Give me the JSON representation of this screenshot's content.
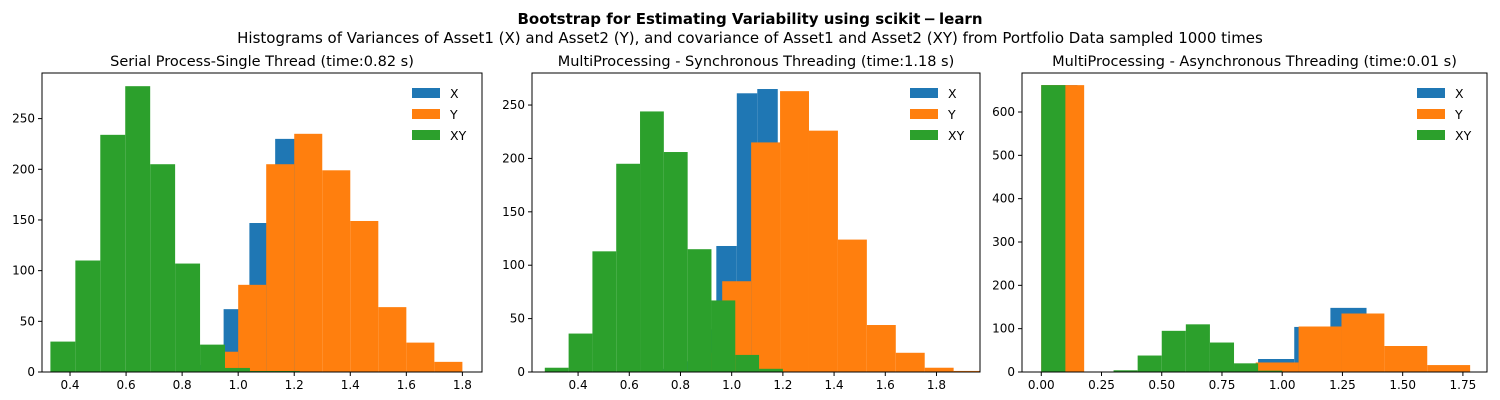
{
  "figure": {
    "title": "Bootstrap for Estimating Variability using scikit − learn",
    "subtitle": "Histograms of Variances of Asset1 (X) and Asset2 (Y), and covariance of Asset1 and Asset2 (XY) from Portfolio Data sampled 1000 times"
  },
  "colors": {
    "X": "#1f77b4",
    "Y": "#ff7f0e",
    "XY": "#2ca02c"
  },
  "chart_data": [
    {
      "type": "bar",
      "title": "Serial Process-Single Thread (time:0.82 s)",
      "xlim": [
        0.3,
        1.87
      ],
      "ylim": [
        0,
        295
      ],
      "xticks": [
        0.4,
        0.6,
        0.8,
        1.0,
        1.2,
        1.4,
        1.6,
        1.8
      ],
      "xtick_labels": [
        "0.4",
        "0.6",
        "0.8",
        "1.0",
        "1.2",
        "1.4",
        "1.6",
        "1.8"
      ],
      "yticks": [
        0,
        50,
        100,
        150,
        200,
        250
      ],
      "ytick_labels": [
        "0",
        "50",
        "100",
        "150",
        "200",
        "250"
      ],
      "legend_position": "top-right",
      "series": [
        {
          "name": "X",
          "color_key": "X",
          "edges": [
            0.58,
            0.672,
            0.764,
            0.856,
            0.948,
            1.04,
            1.132,
            1.224,
            1.316,
            1.408,
            1.5
          ],
          "counts": [
            1,
            0,
            0,
            7,
            62,
            147,
            230,
            0,
            0,
            0
          ]
        },
        {
          "name": "Y",
          "color_key": "Y",
          "edges": [
            0.8,
            0.9,
            1.0,
            1.1,
            1.2,
            1.3,
            1.4,
            1.5,
            1.6,
            1.7,
            1.8
          ],
          "counts": [
            2,
            20,
            86,
            205,
            235,
            199,
            149,
            64,
            29,
            10
          ]
        },
        {
          "name": "XY",
          "color_key": "XY",
          "edges": [
            0.33,
            0.419,
            0.508,
            0.597,
            0.686,
            0.775,
            0.864,
            0.953,
            1.042,
            1.131,
            1.22
          ],
          "counts": [
            30,
            110,
            234,
            282,
            205,
            107,
            27,
            4,
            1,
            1
          ]
        }
      ]
    },
    {
      "type": "bar",
      "title": "MultiProcessing - Synchronous Threading (time:1.18 s)",
      "xlim": [
        0.22,
        1.97
      ],
      "ylim": [
        0,
        280
      ],
      "xticks": [
        0.2,
        0.4,
        0.6,
        0.8,
        1.0,
        1.2,
        1.4,
        1.6,
        1.8
      ],
      "xtick_labels": [
        "0.2",
        "0.4",
        "0.6",
        "0.8",
        "1.0",
        "1.2",
        "1.4",
        "1.6",
        "1.8"
      ],
      "yticks": [
        0,
        50,
        100,
        150,
        200,
        250
      ],
      "ytick_labels": [
        "0",
        "50",
        "100",
        "150",
        "200",
        "250"
      ],
      "legend_position": "top-right",
      "series": [
        {
          "name": "X",
          "color_key": "X",
          "edges": [
            0.62,
            0.7,
            0.78,
            0.86,
            0.94,
            1.02,
            1.1,
            1.18,
            1.26,
            1.34,
            1.42
          ],
          "counts": [
            1,
            3,
            10,
            40,
            118,
            261,
            265,
            0,
            0,
            0
          ]
        },
        {
          "name": "Y",
          "color_key": "Y",
          "edges": [
            0.85,
            0.963,
            1.076,
            1.189,
            1.302,
            1.415,
            1.528,
            1.641,
            1.754,
            1.867,
            1.98
          ],
          "counts": [
            18,
            85,
            215,
            263,
            226,
            124,
            44,
            18,
            4,
            1
          ]
        },
        {
          "name": "XY",
          "color_key": "XY",
          "edges": [
            0.27,
            0.363,
            0.456,
            0.549,
            0.642,
            0.735,
            0.828,
            0.921,
            1.014,
            1.107,
            1.2
          ],
          "counts": [
            4,
            36,
            113,
            195,
            244,
            206,
            115,
            67,
            16,
            3
          ]
        }
      ]
    },
    {
      "type": "bar",
      "title": "MultiProcessing - Asynchronous Threading (time:0.01 s)",
      "xlim": [
        -0.08,
        1.85
      ],
      "ylim": [
        0,
        690
      ],
      "xticks": [
        0.0,
        0.25,
        0.5,
        0.75,
        1.0,
        1.25,
        1.5,
        1.75
      ],
      "xtick_labels": [
        "0.00",
        "0.25",
        "0.50",
        "0.75",
        "1.00",
        "1.25",
        "1.50",
        "1.75"
      ],
      "yticks": [
        0,
        100,
        200,
        300,
        400,
        500,
        600
      ],
      "ytick_labels": [
        "0",
        "100",
        "200",
        "300",
        "400",
        "500",
        "600"
      ],
      "legend_position": "top-right",
      "series": [
        {
          "name": "X",
          "color_key": "X",
          "edges": [
            0.0,
            0.15,
            0.3,
            0.45,
            0.6,
            0.75,
            0.9,
            1.05,
            1.2,
            1.35,
            1.5
          ],
          "counts": [
            662,
            0,
            0,
            0,
            0,
            10,
            30,
            104,
            148,
            0
          ]
        },
        {
          "name": "Y",
          "color_key": "Y",
          "edges": [
            0.0,
            0.178,
            0.356,
            0.534,
            0.712,
            0.89,
            1.068,
            1.246,
            1.424,
            1.602,
            1.78
          ],
          "counts": [
            662,
            0,
            0,
            0,
            5,
            22,
            105,
            135,
            60,
            16
          ]
        },
        {
          "name": "XY",
          "color_key": "XY",
          "edges": [
            0.0,
            0.1,
            0.2,
            0.3,
            0.4,
            0.5,
            0.6,
            0.7,
            0.8,
            0.9,
            1.0
          ],
          "counts": [
            662,
            0,
            0,
            4,
            38,
            95,
            110,
            68,
            20,
            3
          ]
        }
      ]
    }
  ]
}
